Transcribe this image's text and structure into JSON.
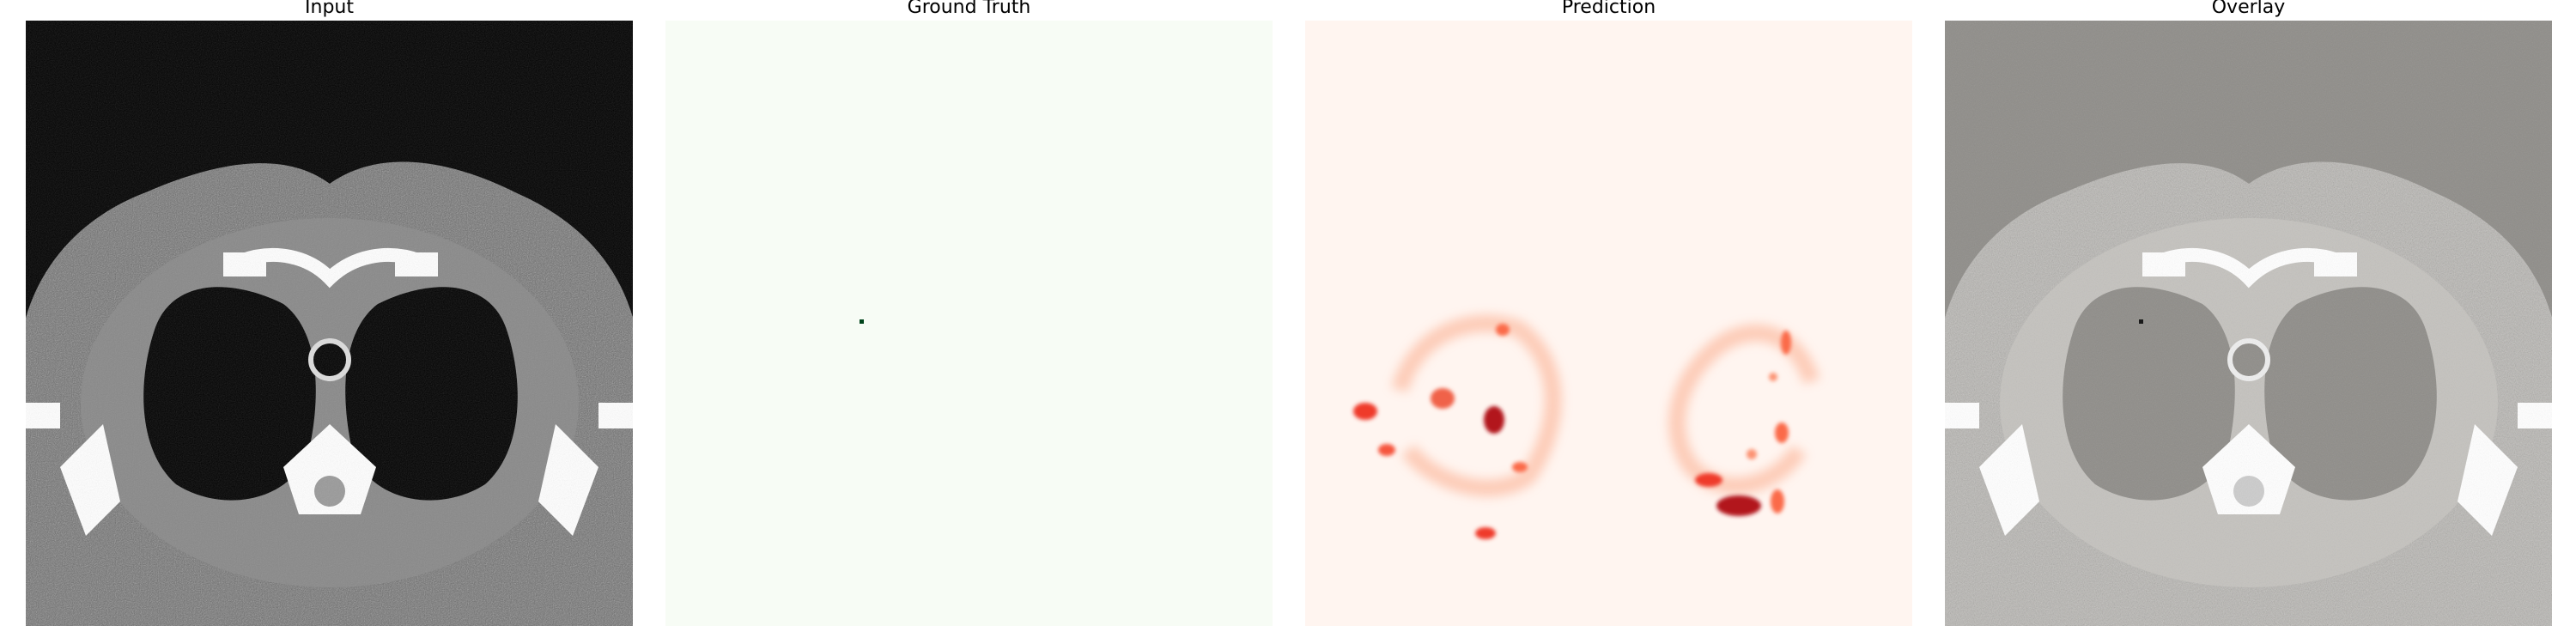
{
  "panels": [
    {
      "id": "input",
      "title": "Input"
    },
    {
      "id": "ground_truth",
      "title": "Ground Truth"
    },
    {
      "id": "prediction",
      "title": "Prediction"
    },
    {
      "id": "overlay",
      "title": "Overlay"
    }
  ],
  "colors": {
    "background": "#ffffff",
    "ct_black": "#000000",
    "ground_truth_fill": "#f7fcf5",
    "prediction_fill": "#fff5f0",
    "prediction_hot": "#b2141b",
    "prediction_warm": "#ef3b2c",
    "overlay_gray": "#8f8d89"
  }
}
